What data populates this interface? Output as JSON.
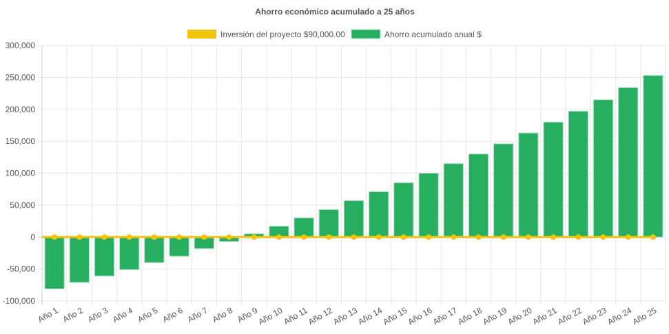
{
  "chart_data": {
    "type": "bar",
    "title": "Ahorro económico acumulado a 25 años",
    "xlabel": "",
    "ylabel": "",
    "ylim": [
      -100000,
      300000
    ],
    "yticks": [
      -100000,
      -50000,
      0,
      50000,
      100000,
      150000,
      200000,
      250000,
      300000
    ],
    "ytick_labels": [
      "-100,000",
      "-50,000",
      "0",
      "50,000",
      "100,000",
      "150,000",
      "200,000",
      "250,000",
      "300,000"
    ],
    "grid": true,
    "legend_position": "top",
    "categories": [
      "Año 1",
      "Año 2",
      "Año 3",
      "Año 4",
      "Año 5",
      "Año 6",
      "Año 7",
      "Año 8",
      "Año 9",
      "Año 10",
      "Año 11",
      "Año 12",
      "Año 13",
      "Año 14",
      "Año 15",
      "Año 16",
      "Año 17",
      "Año 18",
      "Año 19",
      "Año 20",
      "Año 21",
      "Año 22",
      "Año 23",
      "Año 24",
      "Año 25"
    ],
    "series": [
      {
        "name": "Inversión del proyecto $90,000.00",
        "kind": "line",
        "color": "#f1c40f",
        "values": [
          0,
          0,
          0,
          0,
          0,
          0,
          0,
          0,
          0,
          0,
          0,
          0,
          0,
          0,
          0,
          0,
          0,
          0,
          0,
          0,
          0,
          0,
          0,
          0,
          0
        ]
      },
      {
        "name": "Ahorro acumulado anual $",
        "kind": "bar",
        "color": "#27ae60",
        "border_color": "#a9dfbf",
        "values": [
          -81000,
          -71000,
          -61000,
          -51000,
          -40000,
          -30000,
          -18000,
          -7000,
          5000,
          17000,
          30000,
          43000,
          57000,
          71000,
          85000,
          100000,
          115000,
          130000,
          146000,
          163000,
          180000,
          197000,
          215000,
          234000,
          253000
        ]
      }
    ]
  }
}
